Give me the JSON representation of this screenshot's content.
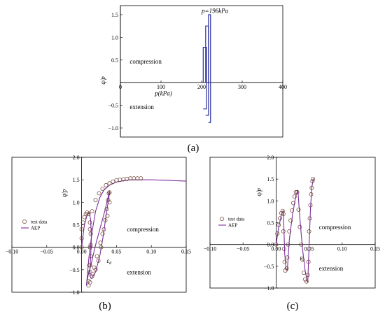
{
  "chart_data": [
    {
      "panel": "(a)",
      "type": "line",
      "title": "",
      "xlabel": "p(kPa)",
      "ylabel": "q/p",
      "xlim": [
        0,
        400
      ],
      "ylim": [
        -1.2,
        1.7
      ],
      "xticks": [
        "0",
        "100",
        "200",
        "300",
        "400"
      ],
      "yticks": [
        "-1.0",
        "-0.5",
        "0.0",
        "0.5",
        "1.0",
        "1.5"
      ],
      "annotations": {
        "pressure": "p=196kPa",
        "upper_region": "compression",
        "lower_region": "extension"
      },
      "line_color": "#2b2f9e",
      "series": [
        {
          "x": [
            204,
            204,
            212,
            212,
            204
          ],
          "y": [
            0,
            0.78,
            0.78,
            -0.58,
            -0.58
          ]
        },
        {
          "x": [
            210,
            210,
            217,
            217,
            210
          ],
          "y": [
            0,
            1.25,
            1.25,
            -0.72,
            -0.72
          ]
        },
        {
          "x": [
            217,
            217,
            222,
            222,
            217
          ],
          "y": [
            0,
            1.5,
            1.5,
            -0.88,
            -0.88
          ]
        }
      ]
    },
    {
      "panel": "(b)",
      "type": "scatter",
      "title": "",
      "xlabel": "εd",
      "ylabel": "q/p",
      "xlim": [
        -0.1,
        0.15
      ],
      "ylim": [
        -1.0,
        2.0
      ],
      "xticks": [
        "-0.10",
        "-0.05",
        "0.00",
        "0.05",
        "0.10",
        "0.15"
      ],
      "yticks": [
        "-1.0",
        "-0.5",
        "0.0",
        "0.5",
        "1.0",
        "1.5",
        "2.0"
      ],
      "annotations": {
        "upper_region": "compression",
        "lower_region": "extension"
      },
      "legend": {
        "items": [
          "test data",
          "AEP"
        ],
        "position": "left-middle"
      },
      "marker_color": "#6b3f2f",
      "line_color": "#7b2f9e",
      "test_data": {
        "x": [
          0.0,
          0.0,
          0.0,
          0.002,
          0.004,
          0.006,
          0.008,
          0.01,
          0.012,
          0.013,
          0.013,
          0.013,
          0.012,
          0.012,
          0.016,
          0.02,
          0.024,
          0.028,
          0.03,
          0.034,
          0.036,
          0.038,
          0.039,
          0.04,
          0.04,
          0.037,
          0.032,
          0.027,
          0.022,
          0.018,
          0.015,
          0.012,
          0.01,
          0.01,
          0.011,
          0.012,
          0.012,
          0.015,
          0.02,
          0.025,
          0.03,
          0.035,
          0.04,
          0.045,
          0.05,
          0.055,
          0.06,
          0.065,
          0.07,
          0.075,
          0.08,
          0.085
        ],
        "y": [
          0.0,
          0.2,
          0.4,
          0.55,
          0.67,
          0.74,
          0.77,
          0.74,
          0.55,
          0.3,
          0.05,
          -0.2,
          -0.4,
          -0.55,
          -0.6,
          -0.5,
          -0.3,
          0.0,
          0.3,
          0.6,
          0.85,
          1.05,
          1.2,
          1.22,
          1.0,
          0.7,
          0.4,
          0.1,
          -0.2,
          -0.45,
          -0.65,
          -0.78,
          -0.85,
          -0.75,
          -0.4,
          0.0,
          0.4,
          0.8,
          1.05,
          1.2,
          1.3,
          1.38,
          1.42,
          1.46,
          1.49,
          1.5,
          1.51,
          1.52,
          1.53,
          1.53,
          1.53,
          1.53
        ]
      },
      "aep_curves": [
        {
          "x": [
            0.0,
            0.004,
            0.008,
            0.011,
            0.013,
            0.014,
            0.013,
            0.012,
            0.012,
            0.014
          ],
          "y": [
            0.0,
            0.5,
            0.72,
            0.78,
            0.6,
            0.2,
            -0.2,
            -0.5,
            -0.65,
            -0.7
          ]
        },
        {
          "x": [
            0.014,
            0.02,
            0.026,
            0.031,
            0.035,
            0.038,
            0.04,
            0.04,
            0.034,
            0.027,
            0.02,
            0.014,
            0.009,
            0.007,
            0.007
          ],
          "y": [
            -0.7,
            -0.55,
            -0.2,
            0.25,
            0.7,
            1.0,
            1.2,
            1.25,
            0.85,
            0.45,
            0.05,
            -0.35,
            -0.65,
            -0.82,
            -0.85
          ]
        },
        {
          "x": [
            0.007,
            0.01,
            0.015,
            0.02,
            0.026,
            0.032,
            0.04,
            0.05,
            0.06,
            0.07,
            0.08,
            0.09,
            0.1,
            0.12,
            0.15
          ],
          "y": [
            -0.85,
            -0.3,
            0.35,
            0.8,
            1.1,
            1.27,
            1.38,
            1.45,
            1.48,
            1.5,
            1.5,
            1.5,
            1.5,
            1.49,
            1.47
          ]
        }
      ]
    },
    {
      "panel": "(c)",
      "type": "scatter",
      "title": "",
      "xlabel": "εv",
      "ylabel": "q/p",
      "xlim": [
        -0.1,
        0.15
      ],
      "ylim": [
        -1.0,
        2.0
      ],
      "xticks": [
        "-0.10",
        "-0.05",
        "0.00",
        "0.05",
        "0.10",
        "0.15"
      ],
      "yticks": [
        "-1.0",
        "-0.5",
        "0.0",
        "0.5",
        "1.0",
        "1.5",
        "2.0"
      ],
      "annotations": {
        "upper_region": "compression",
        "lower_region": "extension"
      },
      "legend": {
        "items": [
          "test data",
          "AEP"
        ],
        "position": "left-middle"
      },
      "marker_color": "#6b3f2f",
      "line_color": "#7b2f9e",
      "test_data": {
        "x": [
          0.0,
          0.002,
          0.004,
          0.006,
          0.008,
          0.01,
          0.011,
          0.011,
          0.012,
          0.013,
          0.014,
          0.016,
          0.017,
          0.018,
          0.02,
          0.022,
          0.024,
          0.026,
          0.028,
          0.03,
          0.032,
          0.034,
          0.036,
          0.038,
          0.04,
          0.042,
          0.044,
          0.046,
          0.048,
          0.049,
          0.05,
          0.05,
          0.051,
          0.052,
          0.053,
          0.054,
          0.055,
          0.056
        ],
        "y": [
          0.0,
          0.25,
          0.45,
          0.6,
          0.72,
          0.77,
          0.7,
          0.3,
          -0.1,
          -0.4,
          -0.6,
          -0.55,
          -0.3,
          0.0,
          0.3,
          0.55,
          0.78,
          0.95,
          1.1,
          1.2,
          1.2,
          0.8,
          0.4,
          0.0,
          -0.35,
          -0.65,
          -0.8,
          -0.85,
          -0.7,
          -0.4,
          -0.1,
          0.3,
          0.6,
          0.9,
          1.15,
          1.3,
          1.45,
          1.5
        ]
      },
      "aep_curves": [
        {
          "x": [
            0.0,
            0.004,
            0.008,
            0.011,
            0.012,
            0.013,
            0.015,
            0.017
          ],
          "y": [
            0.0,
            0.4,
            0.68,
            0.78,
            0.3,
            -0.2,
            -0.55,
            -0.6
          ]
        },
        {
          "x": [
            0.017,
            0.02,
            0.025,
            0.03,
            0.033,
            0.036,
            0.04,
            0.044,
            0.047,
            0.048
          ],
          "y": [
            -0.6,
            0.1,
            0.7,
            1.12,
            1.25,
            0.6,
            -0.1,
            -0.6,
            -0.85,
            -0.86
          ]
        },
        {
          "x": [
            0.048,
            0.05,
            0.052,
            0.054,
            0.056,
            0.057
          ],
          "y": [
            -0.86,
            0.0,
            0.8,
            1.3,
            1.48,
            1.52
          ]
        }
      ]
    }
  ]
}
